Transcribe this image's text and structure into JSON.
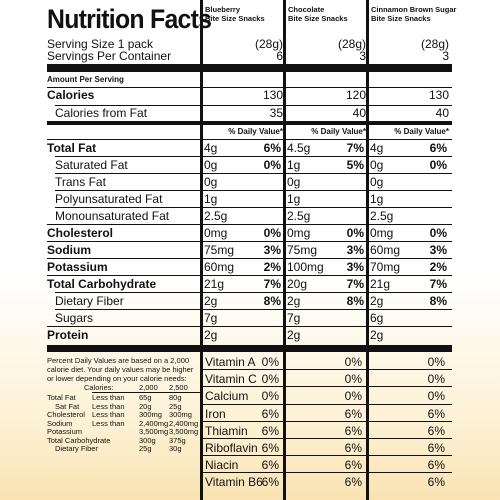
{
  "title": "Nutrition Facts",
  "products": [
    {
      "name": [
        "Blueberry",
        "Bite Size Snacks"
      ],
      "serving_size": "(28g)",
      "servings": "6",
      "calories": "130",
      "calories_from_fat": "35",
      "dv_header": "% Daily Value*"
    },
    {
      "name": [
        "Chocolate",
        "Bite Size Snacks"
      ],
      "serving_size": "(28g)",
      "servings": "3",
      "calories": "120",
      "calories_from_fat": "40",
      "dv_header": "% Daily Value*"
    },
    {
      "name": [
        "Cinnamon Brown Sugar",
        "Bite Size Snacks"
      ],
      "serving_size": "(28g)",
      "servings": "3",
      "calories": "130",
      "calories_from_fat": "40",
      "dv_header": "% Daily Value*"
    }
  ],
  "serving_size_label": "Serving Size 1 pack",
  "servings_label": "Servings Per Container",
  "amount_per_serving": "Amount Per Serving",
  "calories_label": "Calories",
  "calories_from_fat_label": "Calories from Fat",
  "nutrients": [
    {
      "label": "Total Fat",
      "bold": true,
      "indent": false,
      "values": [
        [
          "4g",
          "6%"
        ],
        [
          "4.5g",
          "7%"
        ],
        [
          "4g",
          "6%"
        ]
      ]
    },
    {
      "label": "Saturated Fat",
      "bold": false,
      "indent": true,
      "values": [
        [
          "0g",
          "0%"
        ],
        [
          "1g",
          "5%"
        ],
        [
          "0g",
          "0%"
        ]
      ]
    },
    {
      "label": "Trans Fat",
      "bold": false,
      "indent": true,
      "values": [
        [
          "0g"
        ],
        [
          "0g"
        ],
        [
          "0g"
        ]
      ]
    },
    {
      "label": "Polyunsaturated Fat",
      "bold": false,
      "indent": true,
      "values": [
        [
          "1g"
        ],
        [
          "1g"
        ],
        [
          "1g"
        ]
      ]
    },
    {
      "label": "Monounsaturated Fat",
      "bold": false,
      "indent": true,
      "values": [
        [
          "2.5g"
        ],
        [
          "2.5g"
        ],
        [
          "2.5g"
        ]
      ]
    },
    {
      "label": "Cholesterol",
      "bold": true,
      "indent": false,
      "values": [
        [
          "0mg",
          "0%"
        ],
        [
          "0mg",
          "0%"
        ],
        [
          "0mg",
          "0%"
        ]
      ]
    },
    {
      "label": "Sodium",
      "bold": true,
      "indent": false,
      "values": [
        [
          "75mg",
          "3%"
        ],
        [
          "75mg",
          "3%"
        ],
        [
          "60mg",
          "3%"
        ]
      ]
    },
    {
      "label": "Potassium",
      "bold": true,
      "indent": false,
      "values": [
        [
          "60mg",
          "2%"
        ],
        [
          "100mg",
          "3%"
        ],
        [
          "70mg",
          "2%"
        ]
      ]
    },
    {
      "label": "Total Carbohydrate",
      "bold": true,
      "indent": false,
      "values": [
        [
          "21g",
          "7%"
        ],
        [
          "20g",
          "7%"
        ],
        [
          "21g",
          "7%"
        ]
      ]
    },
    {
      "label": "Dietary Fiber",
      "bold": false,
      "indent": true,
      "values": [
        [
          "2g",
          "8%"
        ],
        [
          "2g",
          "8%"
        ],
        [
          "2g",
          "8%"
        ]
      ]
    },
    {
      "label": "Sugars",
      "bold": false,
      "indent": true,
      "values": [
        [
          "7g"
        ],
        [
          "7g"
        ],
        [
          "6g"
        ]
      ]
    },
    {
      "label": "Protein",
      "bold": true,
      "indent": false,
      "values": [
        [
          "2g"
        ],
        [
          "2g"
        ],
        [
          "2g"
        ]
      ]
    }
  ],
  "footnote": [
    "Percent Daily Values are based on a 2,000",
    "calorie diet. Your daily values may be higher",
    "or lower depending on your calorie needs:"
  ],
  "dv_table": {
    "header": [
      "Calories:",
      "2,000",
      "2,500"
    ],
    "rows": [
      {
        "label": "Total Fat",
        "qualifier": "Less than",
        "values": [
          "65g",
          "80g"
        ],
        "indent": false
      },
      {
        "label": "Sat Fat",
        "qualifier": "Less than",
        "values": [
          "20g",
          "25g"
        ],
        "indent": true
      },
      {
        "label": "Cholesterol",
        "qualifier": "Less than",
        "values": [
          "300mg",
          "300mg"
        ],
        "indent": false
      },
      {
        "label": "Sodium",
        "qualifier": "Less than",
        "values": [
          "2,400mg",
          "2,400mg"
        ],
        "indent": false
      },
      {
        "label": "Potassium",
        "values": [
          "3,500mg",
          "3,500mg"
        ],
        "indent": false
      },
      {
        "label": "Total Carbohydrate",
        "values": [
          "300g",
          "375g"
        ],
        "indent": false
      },
      {
        "label": "Dietary Fiber",
        "values": [
          "25g",
          "30g"
        ],
        "indent": true
      }
    ]
  },
  "vitamins": [
    {
      "label": "Vitamin A",
      "values": [
        "0%",
        "0%",
        "0%"
      ]
    },
    {
      "label": "Vitamin C",
      "values": [
        "0%",
        "0%",
        "0%"
      ]
    },
    {
      "label": "Calcium",
      "values": [
        "0%",
        "0%",
        "0%"
      ]
    },
    {
      "label": "Iron",
      "values": [
        "6%",
        "6%",
        "6%"
      ]
    },
    {
      "label": "Thiamin",
      "values": [
        "6%",
        "6%",
        "6%"
      ]
    },
    {
      "label": "Riboflavin",
      "values": [
        "6%",
        "6%",
        "6%"
      ]
    },
    {
      "label": "Niacin",
      "values": [
        "6%",
        "6%",
        "6%"
      ]
    },
    {
      "label": "Vitamin B6",
      "values": [
        "6%",
        "6%",
        "6%"
      ]
    }
  ]
}
